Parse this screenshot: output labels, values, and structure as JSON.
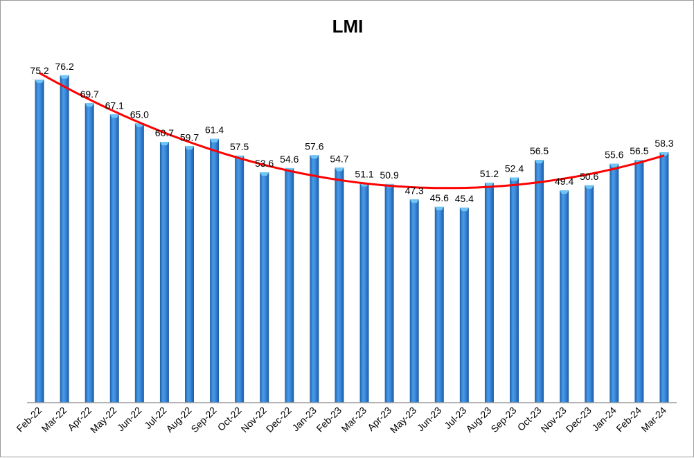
{
  "chart_data": {
    "type": "bar",
    "title": "LMI",
    "categories": [
      "Feb-22",
      "Mar-22",
      "Apr-22",
      "May-22",
      "Jun-22",
      "Jul-22",
      "Aug-22",
      "Sep-22",
      "Oct-22",
      "Nov-22",
      "Dec-22",
      "Jan-23",
      "Feb-23",
      "Mar-23",
      "Apr-23",
      "May-23",
      "Jun-23",
      "Jul-23",
      "Aug-23",
      "Sep-23",
      "Oct-23",
      "Nov-23",
      "Dec-23",
      "Jan-24",
      "Feb-24",
      "Mar-24"
    ],
    "values": [
      75.2,
      76.2,
      69.7,
      67.1,
      65.0,
      60.7,
      59.7,
      61.4,
      57.5,
      53.6,
      54.6,
      57.6,
      54.7,
      51.1,
      50.9,
      47.3,
      45.6,
      45.4,
      51.2,
      52.4,
      56.5,
      49.4,
      50.6,
      55.6,
      56.5,
      58.3
    ],
    "value_labels": [
      "75.2",
      "76.2",
      "69.7",
      "67.1",
      "65.0",
      "60.7",
      "59.7",
      "61.4",
      "57.5",
      "53.6",
      "54.6",
      "57.6",
      "54.7",
      "51.1",
      "50.9",
      "47.3",
      "45.6",
      "45.4",
      "51.2",
      "52.4",
      "56.5",
      "49.4",
      "50.6",
      "55.6",
      "56.5",
      "58.3"
    ],
    "trendline": {
      "type": "polynomial",
      "color": "#ff0000"
    },
    "xlabel": "",
    "ylabel": "",
    "ylim": [
      0,
      80
    ],
    "grid": false,
    "legend": "none",
    "colors": {
      "bar": "#2e7fd2",
      "bar_top": "#6fc6f5",
      "trend": "#ff0000",
      "axis": "#9a9a9a"
    }
  }
}
